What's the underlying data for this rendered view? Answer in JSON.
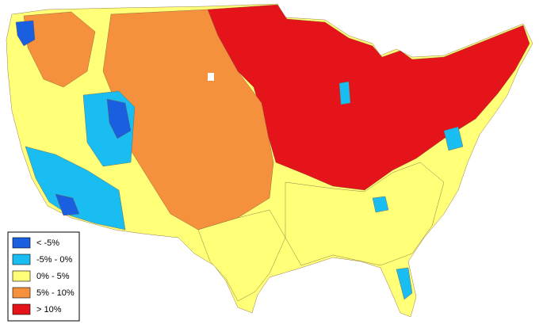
{
  "legend": {
    "items": [
      {
        "label": "< -5%",
        "color": "#1a5fe0"
      },
      {
        "label": "-5% - 0%",
        "color": "#19bdf2"
      },
      {
        "label": "0% - 5%",
        "color": "#ffff78"
      },
      {
        "label": "5% - 10%",
        "color": "#f5903c"
      },
      {
        "label": "> 10%",
        "color": "#e5141b"
      }
    ]
  }
}
